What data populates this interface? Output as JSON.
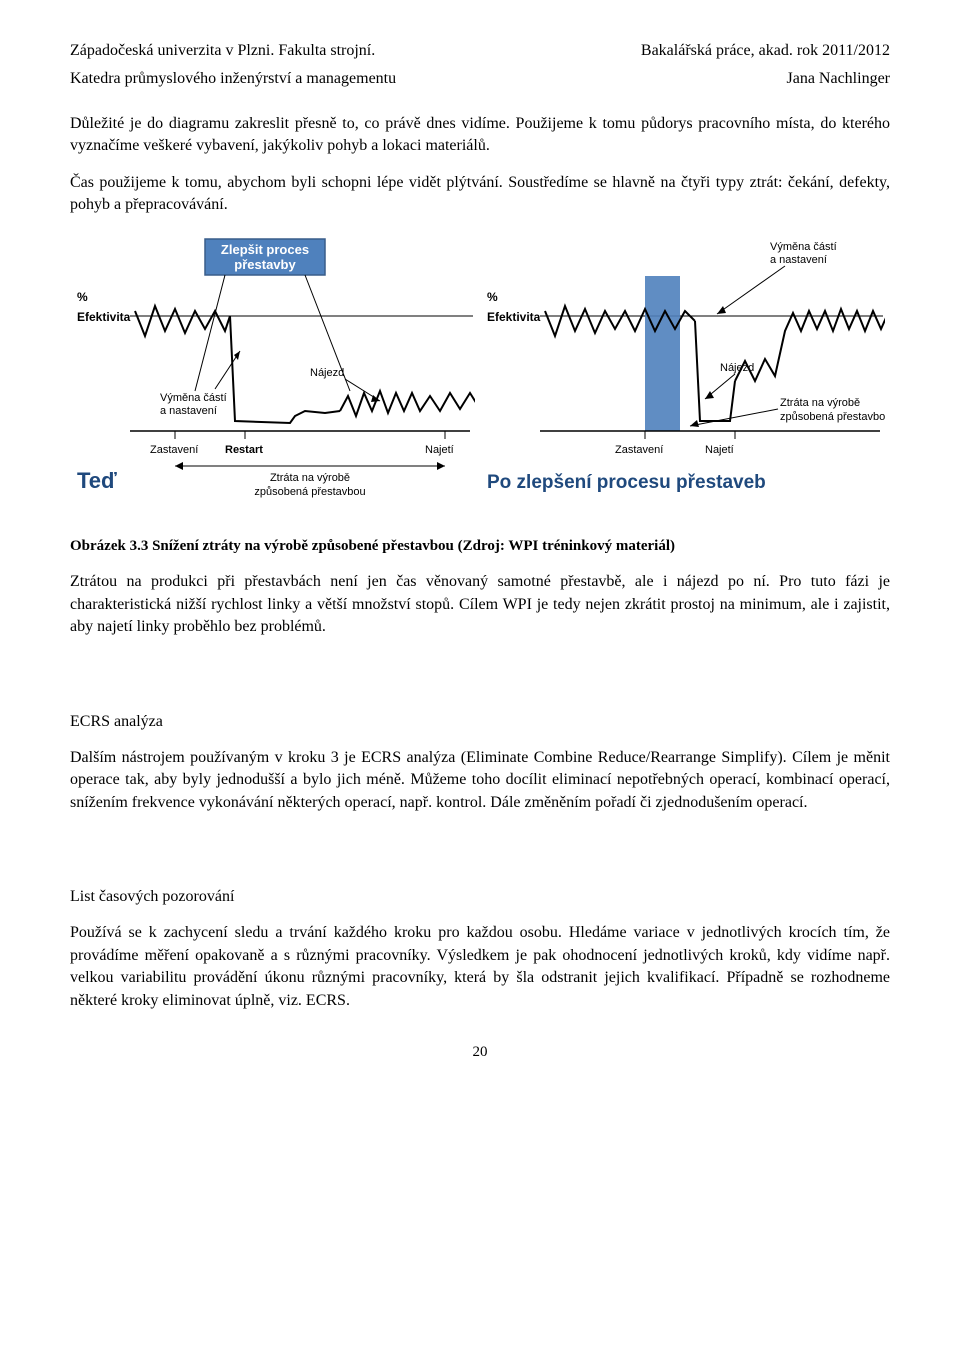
{
  "header": {
    "left1": "Západočeská univerzita v Plzni. Fakulta strojní.",
    "right1": "Bakalářská práce, akad. rok 2011/2012",
    "left2": "Katedra průmyslového inženýrství a managementu",
    "right2": "Jana Nachlinger"
  },
  "para1": "Důležité je do diagramu zakreslit přesně to, co právě dnes vidíme. Použijeme k tomu půdorys pracovního místa, do kterého vyznačíme veškeré vybavení, jakýkoliv pohyb a lokaci materiálů.",
  "para2": "Čas použijeme k tomu, abychom byli schopni lépe vidět plýtvání. Soustředíme se hlavně na čtyři typy ztrát: čekání, defekty, pohyb a přepracovávání.",
  "figure": {
    "left": {
      "title": "Teď",
      "title_color": "#1f497d",
      "box_label": "Zlepšit proces\npřestavby",
      "box_bg": "#4f81bd",
      "box_text": "#ffffff",
      "y_label": "%\nEfektivita",
      "ann_top": "",
      "ann_mid_left": "Výměna částí\na nastavení",
      "ann_mid_right": "Nájezd",
      "x_ticks": [
        "Zastavení",
        "Restart",
        "Najetí"
      ],
      "bottom_label": "Ztráta na výrobě\nzpůsobená přestavbou",
      "line_color": "#000000",
      "baseline_color": "#000000",
      "arrow_color": "#000000",
      "wave_points1": [
        [
          5,
          30
        ],
        [
          15,
          55
        ],
        [
          25,
          25
        ],
        [
          35,
          50
        ],
        [
          45,
          28
        ],
        [
          55,
          52
        ],
        [
          65,
          30
        ],
        [
          75,
          48
        ],
        [
          85,
          30
        ],
        [
          95,
          50
        ],
        [
          100,
          35
        ]
      ],
      "wave_points2": [
        [
          210,
          130
        ],
        [
          218,
          115
        ],
        [
          226,
          135
        ],
        [
          234,
          112
        ],
        [
          242,
          130
        ],
        [
          250,
          110
        ],
        [
          258,
          132
        ],
        [
          266,
          112
        ],
        [
          274,
          130
        ],
        [
          282,
          112
        ],
        [
          290,
          130
        ],
        [
          300,
          115
        ],
        [
          310,
          130
        ],
        [
          320,
          112
        ],
        [
          330,
          128
        ],
        [
          340,
          112
        ],
        [
          350,
          128
        ],
        [
          360,
          115
        ],
        [
          370,
          50
        ],
        [
          378,
          32
        ],
        [
          386,
          50
        ],
        [
          394,
          30
        ]
      ],
      "dip_points": [
        [
          100,
          35
        ],
        [
          105,
          140
        ],
        [
          160,
          142
        ],
        [
          165,
          135
        ],
        [
          175,
          130
        ],
        [
          195,
          132
        ],
        [
          210,
          130
        ]
      ]
    },
    "right": {
      "title": "Po zlepšení procesu přestaveb",
      "title_color": "#1f497d",
      "y_label": "%\nEfektivita",
      "ann_top": "Výměna částí\na nastavení",
      "ann_mid": "Nájezd",
      "x_ticks": [
        "Zastavení",
        "Najetí"
      ],
      "right_label": "Ztráta na výrobě\nzpůsobená přestavbou",
      "band_color": "#4f81bd",
      "line_color": "#000000",
      "wave_points1": [
        [
          5,
          30
        ],
        [
          15,
          55
        ],
        [
          25,
          25
        ],
        [
          35,
          50
        ],
        [
          45,
          28
        ],
        [
          55,
          52
        ],
        [
          65,
          30
        ],
        [
          75,
          48
        ],
        [
          85,
          30
        ],
        [
          95,
          50
        ],
        [
          105,
          28
        ],
        [
          115,
          50
        ],
        [
          125,
          30
        ],
        [
          135,
          48
        ],
        [
          145,
          30
        ],
        [
          155,
          40
        ]
      ],
      "wave_points2": [
        [
          195,
          100
        ],
        [
          205,
          80
        ],
        [
          215,
          100
        ],
        [
          225,
          78
        ],
        [
          235,
          95
        ],
        [
          245,
          50
        ],
        [
          253,
          32
        ],
        [
          261,
          50
        ],
        [
          269,
          30
        ],
        [
          277,
          48
        ],
        [
          285,
          30
        ],
        [
          293,
          50
        ],
        [
          301,
          28
        ],
        [
          309,
          48
        ],
        [
          317,
          30
        ],
        [
          325,
          50
        ],
        [
          333,
          30
        ],
        [
          341,
          48
        ],
        [
          349,
          30
        ],
        [
          357,
          48
        ],
        [
          365,
          30
        ],
        [
          375,
          48
        ],
        [
          385,
          30
        ],
        [
          394,
          45
        ]
      ],
      "dip_points": [
        [
          155,
          40
        ],
        [
          160,
          140
        ],
        [
          190,
          140
        ],
        [
          195,
          100
        ]
      ]
    }
  },
  "caption": "Obrázek 3.3 Snížení ztráty na výrobě způsobené přestavbou (Zdroj: WPI tréninkový materiál)",
  "para3": "Ztrátou na produkci při přestavbách není jen čas věnovaný samotné přestavbě, ale i nájezd po ní. Pro tuto fázi je charakteristická nižší rychlost linky a větší množství stopů. Cílem WPI je tedy nejen zkrátit prostoj na minimum, ale i zajistit, aby najetí linky proběhlo bez problémů.",
  "section_ecrs_title": "ECRS analýza",
  "para4": "Dalším nástrojem používaným v kroku 3 je ECRS analýza (Eliminate Combine Reduce/Rearrange Simplify). Cílem je měnit operace tak, aby byly jednodušší a bylo jich méně. Můžeme toho docílit eliminací nepotřebných operací, kombinací operací, snížením frekvence vykonávání některých operací, např. kontrol. Dále změněním pořadí či zjednodušením operací.",
  "section_list_title": "List časových pozorování",
  "para5": "Používá se k zachycení sledu a trvání každého kroku pro každou osobu. Hledáme variace v jednotlivých krocích tím, že provádíme měření opakovaně a s různými pracovníky. Výsledkem je pak ohodnocení jednotlivých kroků, kdy vidíme např. velkou variabilitu provádění úkonu různými pracovníky, která by šla odstranit jejich kvalifikací. Případně se rozhodneme některé kroky eliminovat úplně, viz. ECRS.",
  "pagenum": "20"
}
